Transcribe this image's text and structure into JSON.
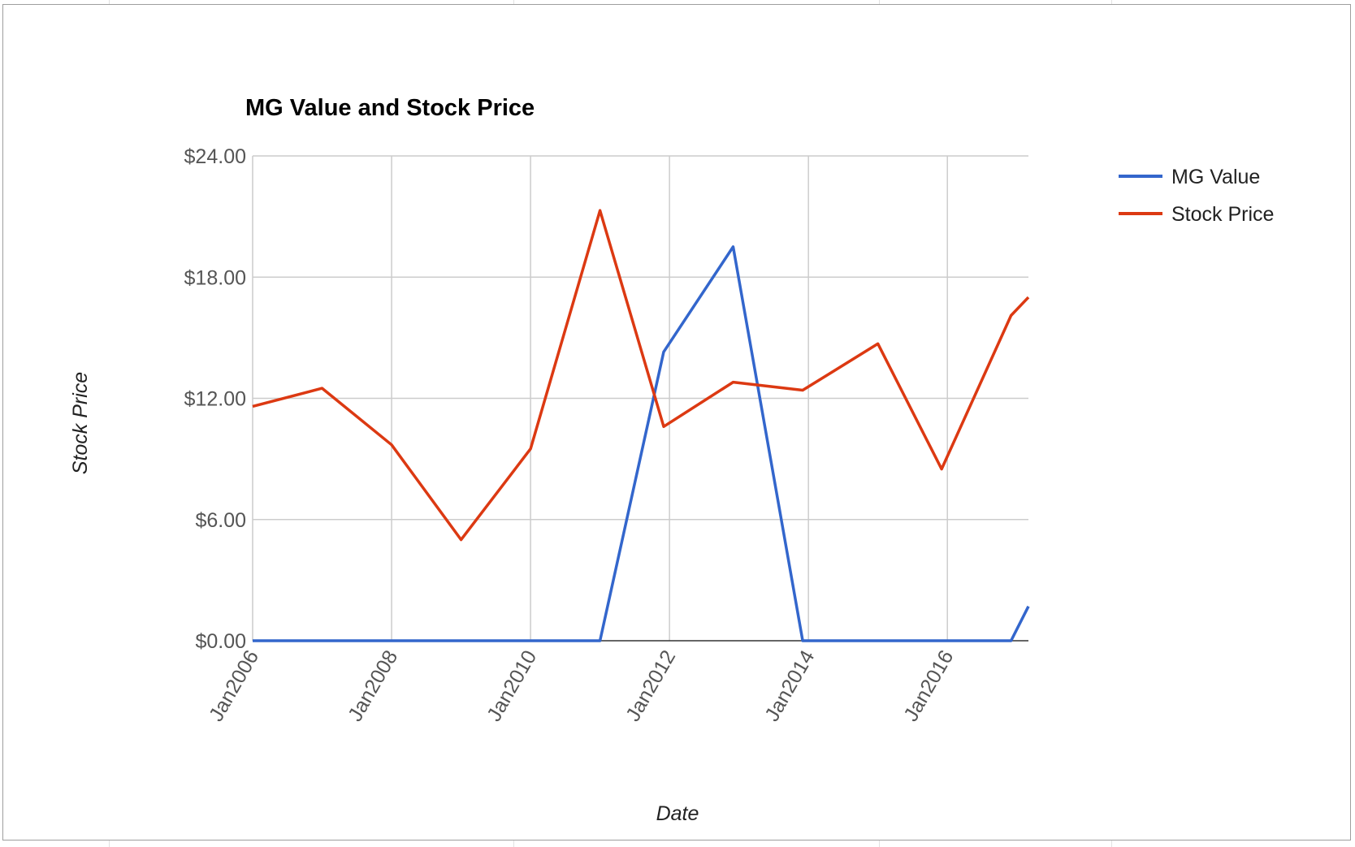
{
  "chart_data": {
    "type": "line",
    "title": "MG Value and Stock Price",
    "xlabel": "Date",
    "ylabel": "Stock Price",
    "x_tick_labels": [
      "Jan2006",
      "Jan2008",
      "Jan2010",
      "Jan2012",
      "Jan2014",
      "Jan2016"
    ],
    "y_tick_labels": [
      "$0.00",
      "$6.00",
      "$12.00",
      "$18.00",
      "$24.00"
    ],
    "y_ticks": [
      0,
      6,
      12,
      18,
      24
    ],
    "ylim": [
      0,
      24
    ],
    "xlim": [
      "2006-01",
      "2017-03"
    ],
    "grid": true,
    "legend_position": "right",
    "series": [
      {
        "name": "MG Value",
        "color": "#3366cc",
        "points": [
          [
            "2006-01",
            0
          ],
          [
            "2007-01",
            0
          ],
          [
            "2008-01",
            0
          ],
          [
            "2009-01",
            0
          ],
          [
            "2010-01",
            0
          ],
          [
            "2011-01",
            0
          ],
          [
            "2011-12",
            14.3
          ],
          [
            "2012-12",
            19.5
          ],
          [
            "2013-12",
            0
          ],
          [
            "2015-01",
            0
          ],
          [
            "2015-12",
            0
          ],
          [
            "2016-12",
            0
          ],
          [
            "2017-03",
            1.7
          ]
        ]
      },
      {
        "name": "Stock Price",
        "color": "#dc3912",
        "points": [
          [
            "2006-01",
            11.6
          ],
          [
            "2007-01",
            12.5
          ],
          [
            "2008-01",
            9.7
          ],
          [
            "2009-01",
            5.0
          ],
          [
            "2010-01",
            9.5
          ],
          [
            "2011-01",
            21.3
          ],
          [
            "2011-12",
            10.6
          ],
          [
            "2012-12",
            12.8
          ],
          [
            "2013-12",
            12.4
          ],
          [
            "2015-01",
            14.7
          ],
          [
            "2015-12",
            8.5
          ],
          [
            "2016-12",
            16.1
          ],
          [
            "2017-03",
            17.0
          ]
        ]
      }
    ]
  }
}
